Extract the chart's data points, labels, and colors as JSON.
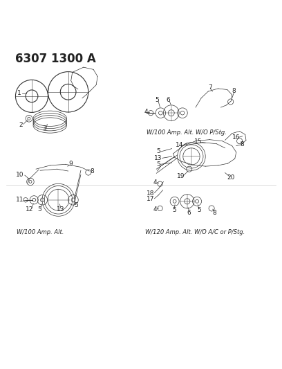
{
  "title": "6307 1300 A",
  "title_fontsize": 12,
  "title_fontweight": "bold",
  "bg_color": "#ffffff",
  "line_color": "#333333",
  "text_color": "#222222",
  "caption_top_right": "W/100 Amp. Alt. W/O P/Stg.",
  "caption_bottom_left": "W/100 Amp. Alt.",
  "caption_bottom_right": "W/120 Amp. Alt. W/O A/C or P/Stg.",
  "caption_fontsize": 6.0,
  "label_fontsize": 6.5,
  "figsize": [
    4.08,
    5.33
  ],
  "dpi": 100
}
